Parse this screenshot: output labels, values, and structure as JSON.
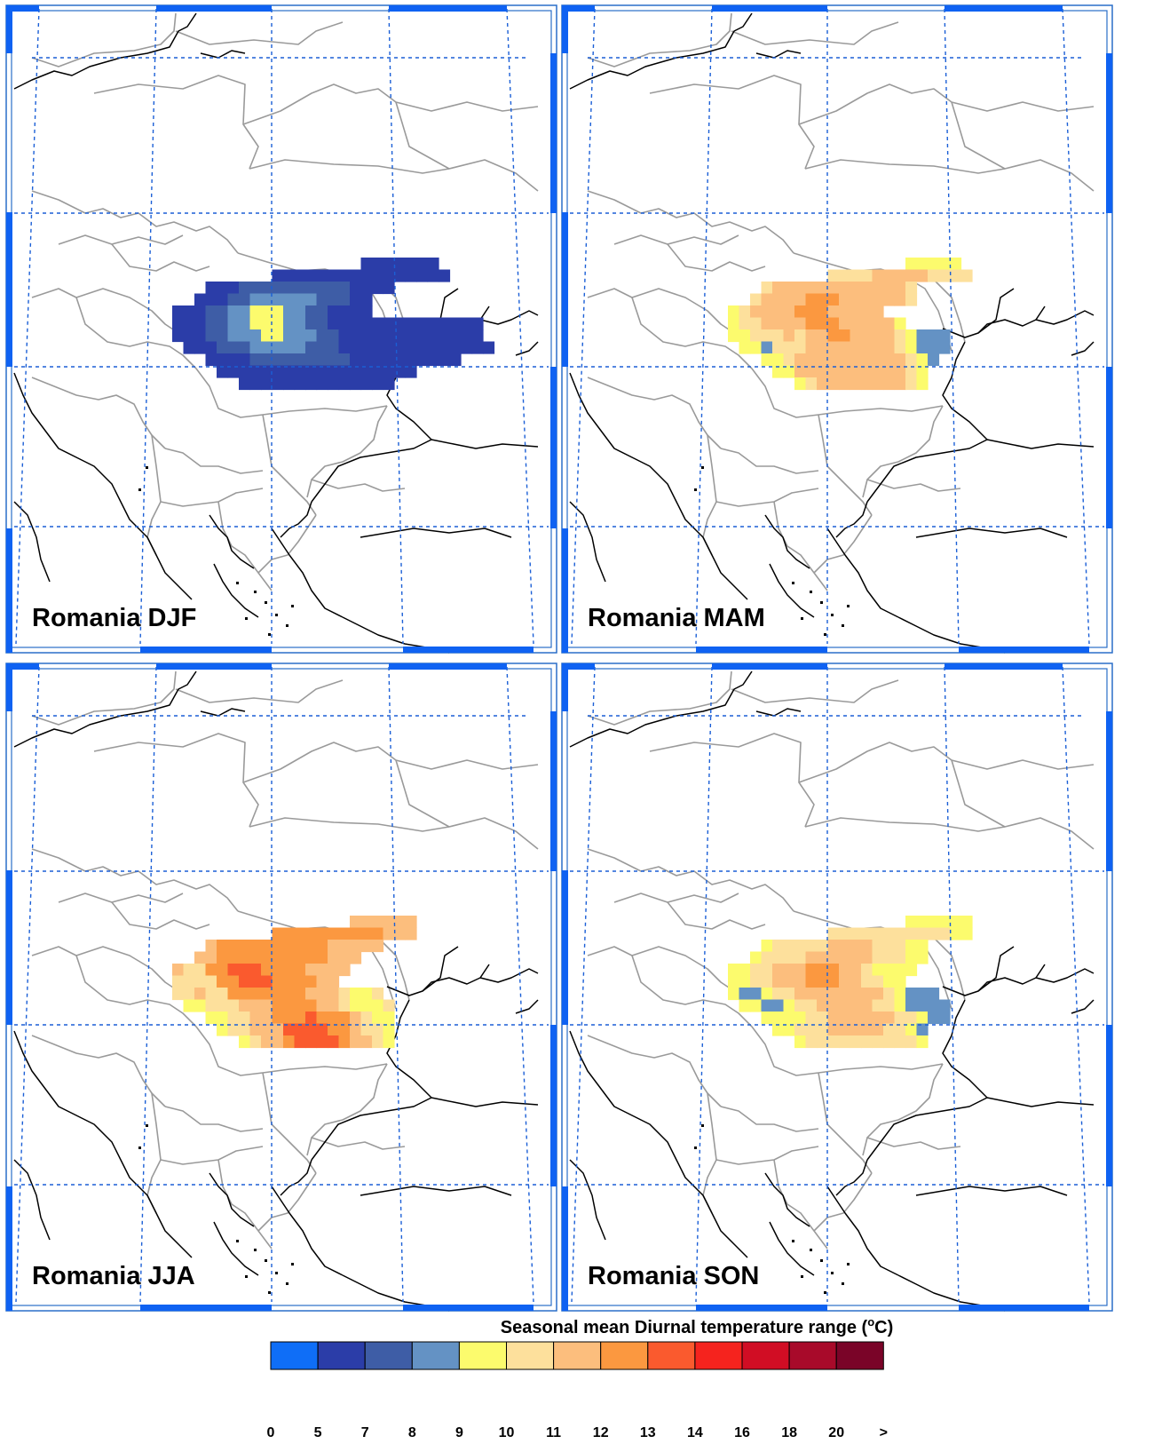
{
  "figure": {
    "panels": [
      {
        "label": "Romania DJF",
        "season": "DJF",
        "field_level": "low (5-9 °C), yellow peak at centre"
      },
      {
        "label": "Romania MAM",
        "season": "MAM",
        "field_level": "mostly 10-12 °C, blue cells in south-west and east"
      },
      {
        "label": "Romania JJA",
        "season": "JJA",
        "field_level": "mostly 11-13 °C, red cells centre and south"
      },
      {
        "label": "Romania SON",
        "season": "SON",
        "field_level": "mostly 9-12 °C, blue cells in south-west and east"
      }
    ],
    "colorbar": {
      "title_main": "Seasonal mean Diurnal temperature range (",
      "title_super": "o",
      "title_unit": "C)",
      "ticks": [
        "0",
        "5",
        "7",
        "8",
        "9",
        "10",
        "11",
        "12",
        "13",
        "14",
        "16",
        "18",
        "20",
        ">"
      ],
      "colors": [
        "#0f6ef7",
        "#2b3da8",
        "#3e5da6",
        "#6492c4",
        "#fcfb6d",
        "#fde09c",
        "#fcbe7d",
        "#fb9840",
        "#fa5a2e",
        "#f5231e",
        "#d10d24",
        "#a80a2a",
        "#7a0428"
      ]
    },
    "style": {
      "frame_color": "#2a6ec9",
      "axis_bar_color": "#0f62f2",
      "grid_color": "#1b5fd6",
      "border_gray": "#9a9a9a",
      "coast_color": "#000000"
    }
  }
}
